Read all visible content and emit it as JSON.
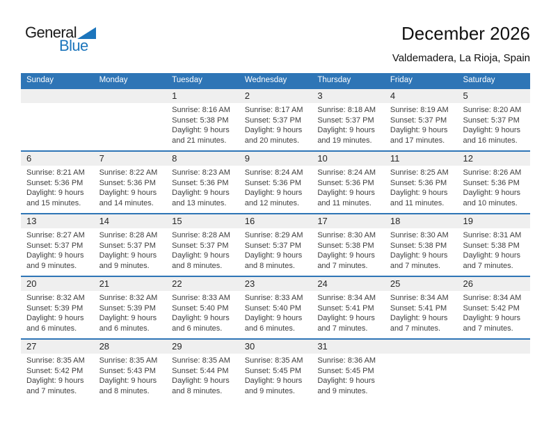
{
  "logo": {
    "text_top": "General",
    "text_bottom": "Blue"
  },
  "header": {
    "title": "December 2026",
    "location": "Valdemadera, La Rioja, Spain"
  },
  "weekday_header": [
    "Sunday",
    "Monday",
    "Tuesday",
    "Wednesday",
    "Thursday",
    "Friday",
    "Saturday"
  ],
  "colors": {
    "header_bar_blue": "#2E75B6",
    "week_divider_blue": "#2E75B6",
    "day_number_band_gray": "#EFEFEF",
    "logo_blue": "#1C75BC",
    "header_text": "#FFFFFF",
    "body_text": "#3D3D3D"
  },
  "weeks": [
    [
      null,
      null,
      {
        "day": "1",
        "lines": [
          "Sunrise: 8:16 AM",
          "Sunset: 5:38 PM",
          "Daylight: 9 hours",
          "and 21 minutes."
        ]
      },
      {
        "day": "2",
        "lines": [
          "Sunrise: 8:17 AM",
          "Sunset: 5:37 PM",
          "Daylight: 9 hours",
          "and 20 minutes."
        ]
      },
      {
        "day": "3",
        "lines": [
          "Sunrise: 8:18 AM",
          "Sunset: 5:37 PM",
          "Daylight: 9 hours",
          "and 19 minutes."
        ]
      },
      {
        "day": "4",
        "lines": [
          "Sunrise: 8:19 AM",
          "Sunset: 5:37 PM",
          "Daylight: 9 hours",
          "and 17 minutes."
        ]
      },
      {
        "day": "5",
        "lines": [
          "Sunrise: 8:20 AM",
          "Sunset: 5:37 PM",
          "Daylight: 9 hours",
          "and 16 minutes."
        ]
      }
    ],
    [
      {
        "day": "6",
        "lines": [
          "Sunrise: 8:21 AM",
          "Sunset: 5:36 PM",
          "Daylight: 9 hours",
          "and 15 minutes."
        ]
      },
      {
        "day": "7",
        "lines": [
          "Sunrise: 8:22 AM",
          "Sunset: 5:36 PM",
          "Daylight: 9 hours",
          "and 14 minutes."
        ]
      },
      {
        "day": "8",
        "lines": [
          "Sunrise: 8:23 AM",
          "Sunset: 5:36 PM",
          "Daylight: 9 hours",
          "and 13 minutes."
        ]
      },
      {
        "day": "9",
        "lines": [
          "Sunrise: 8:24 AM",
          "Sunset: 5:36 PM",
          "Daylight: 9 hours",
          "and 12 minutes."
        ]
      },
      {
        "day": "10",
        "lines": [
          "Sunrise: 8:24 AM",
          "Sunset: 5:36 PM",
          "Daylight: 9 hours",
          "and 11 minutes."
        ]
      },
      {
        "day": "11",
        "lines": [
          "Sunrise: 8:25 AM",
          "Sunset: 5:36 PM",
          "Daylight: 9 hours",
          "and 11 minutes."
        ]
      },
      {
        "day": "12",
        "lines": [
          "Sunrise: 8:26 AM",
          "Sunset: 5:36 PM",
          "Daylight: 9 hours",
          "and 10 minutes."
        ]
      }
    ],
    [
      {
        "day": "13",
        "lines": [
          "Sunrise: 8:27 AM",
          "Sunset: 5:37 PM",
          "Daylight: 9 hours",
          "and 9 minutes."
        ]
      },
      {
        "day": "14",
        "lines": [
          "Sunrise: 8:28 AM",
          "Sunset: 5:37 PM",
          "Daylight: 9 hours",
          "and 9 minutes."
        ]
      },
      {
        "day": "15",
        "lines": [
          "Sunrise: 8:28 AM",
          "Sunset: 5:37 PM",
          "Daylight: 9 hours",
          "and 8 minutes."
        ]
      },
      {
        "day": "16",
        "lines": [
          "Sunrise: 8:29 AM",
          "Sunset: 5:37 PM",
          "Daylight: 9 hours",
          "and 8 minutes."
        ]
      },
      {
        "day": "17",
        "lines": [
          "Sunrise: 8:30 AM",
          "Sunset: 5:38 PM",
          "Daylight: 9 hours",
          "and 7 minutes."
        ]
      },
      {
        "day": "18",
        "lines": [
          "Sunrise: 8:30 AM",
          "Sunset: 5:38 PM",
          "Daylight: 9 hours",
          "and 7 minutes."
        ]
      },
      {
        "day": "19",
        "lines": [
          "Sunrise: 8:31 AM",
          "Sunset: 5:38 PM",
          "Daylight: 9 hours",
          "and 7 minutes."
        ]
      }
    ],
    [
      {
        "day": "20",
        "lines": [
          "Sunrise: 8:32 AM",
          "Sunset: 5:39 PM",
          "Daylight: 9 hours",
          "and 6 minutes."
        ]
      },
      {
        "day": "21",
        "lines": [
          "Sunrise: 8:32 AM",
          "Sunset: 5:39 PM",
          "Daylight: 9 hours",
          "and 6 minutes."
        ]
      },
      {
        "day": "22",
        "lines": [
          "Sunrise: 8:33 AM",
          "Sunset: 5:40 PM",
          "Daylight: 9 hours",
          "and 6 minutes."
        ]
      },
      {
        "day": "23",
        "lines": [
          "Sunrise: 8:33 AM",
          "Sunset: 5:40 PM",
          "Daylight: 9 hours",
          "and 6 minutes."
        ]
      },
      {
        "day": "24",
        "lines": [
          "Sunrise: 8:34 AM",
          "Sunset: 5:41 PM",
          "Daylight: 9 hours",
          "and 7 minutes."
        ]
      },
      {
        "day": "25",
        "lines": [
          "Sunrise: 8:34 AM",
          "Sunset: 5:41 PM",
          "Daylight: 9 hours",
          "and 7 minutes."
        ]
      },
      {
        "day": "26",
        "lines": [
          "Sunrise: 8:34 AM",
          "Sunset: 5:42 PM",
          "Daylight: 9 hours",
          "and 7 minutes."
        ]
      }
    ],
    [
      {
        "day": "27",
        "lines": [
          "Sunrise: 8:35 AM",
          "Sunset: 5:42 PM",
          "Daylight: 9 hours",
          "and 7 minutes."
        ]
      },
      {
        "day": "28",
        "lines": [
          "Sunrise: 8:35 AM",
          "Sunset: 5:43 PM",
          "Daylight: 9 hours",
          "and 8 minutes."
        ]
      },
      {
        "day": "29",
        "lines": [
          "Sunrise: 8:35 AM",
          "Sunset: 5:44 PM",
          "Daylight: 9 hours",
          "and 8 minutes."
        ]
      },
      {
        "day": "30",
        "lines": [
          "Sunrise: 8:35 AM",
          "Sunset: 5:45 PM",
          "Daylight: 9 hours",
          "and 9 minutes."
        ]
      },
      {
        "day": "31",
        "lines": [
          "Sunrise: 8:36 AM",
          "Sunset: 5:45 PM",
          "Daylight: 9 hours",
          "and 9 minutes."
        ]
      },
      null,
      null
    ]
  ]
}
